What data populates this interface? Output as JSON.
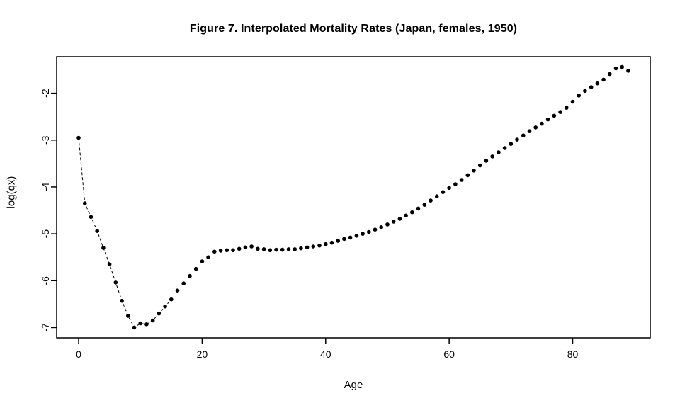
{
  "chart_data": {
    "type": "scatter",
    "title": "Figure 7. Interpolated Mortality Rates (Japan, females, 1950)",
    "xlabel": "Age",
    "ylabel": "log(qx)",
    "x": [
      0,
      1,
      2,
      3,
      4,
      5,
      6,
      7,
      8,
      9,
      10,
      11,
      12,
      13,
      14,
      15,
      16,
      17,
      18,
      19,
      20,
      21,
      22,
      23,
      24,
      25,
      26,
      27,
      28,
      29,
      30,
      31,
      32,
      33,
      34,
      35,
      36,
      37,
      38,
      39,
      40,
      41,
      42,
      43,
      44,
      45,
      46,
      47,
      48,
      49,
      50,
      51,
      52,
      53,
      54,
      55,
      56,
      57,
      58,
      59,
      60,
      61,
      62,
      63,
      64,
      65,
      66,
      67,
      68,
      69,
      70,
      71,
      72,
      73,
      74,
      75,
      76,
      77,
      78,
      79,
      80,
      81,
      82,
      83,
      84,
      85,
      86,
      87,
      88,
      89
    ],
    "y": [
      -2.95,
      -4.35,
      -4.64,
      -4.94,
      -5.3,
      -5.65,
      -6.04,
      -6.43,
      -6.75,
      -7.0,
      -6.91,
      -6.93,
      -6.85,
      -6.7,
      -6.55,
      -6.4,
      -6.21,
      -6.06,
      -5.9,
      -5.75,
      -5.59,
      -5.5,
      -5.38,
      -5.36,
      -5.35,
      -5.35,
      -5.32,
      -5.29,
      -5.27,
      -5.32,
      -5.33,
      -5.35,
      -5.34,
      -5.34,
      -5.33,
      -5.33,
      -5.31,
      -5.29,
      -5.27,
      -5.25,
      -5.22,
      -5.19,
      -5.15,
      -5.11,
      -5.08,
      -5.04,
      -5.0,
      -4.96,
      -4.91,
      -4.86,
      -4.8,
      -4.74,
      -4.68,
      -4.61,
      -4.54,
      -4.46,
      -4.38,
      -4.29,
      -4.2,
      -4.11,
      -4.02,
      -3.94,
      -3.85,
      -3.75,
      -3.65,
      -3.54,
      -3.44,
      -3.35,
      -3.26,
      -3.17,
      -3.08,
      -2.99,
      -2.9,
      -2.81,
      -2.73,
      -2.65,
      -2.56,
      -2.48,
      -2.4,
      -2.31,
      -2.18,
      -2.05,
      -1.95,
      -1.87,
      -1.79,
      -1.71,
      -1.59,
      -1.47,
      -1.44,
      -1.52
    ],
    "xticks": [
      0,
      20,
      40,
      60,
      80
    ],
    "yticks": [
      -7,
      -6,
      -5,
      -4,
      -3,
      -2
    ],
    "xlim": [
      -3.56,
      92.56
    ],
    "ylim": [
      -7.22,
      -1.22
    ],
    "legend": "none",
    "grid": false,
    "marker": "filled-circle",
    "marker_color": "#000000",
    "line_style": "dashed",
    "line_color": "#000000",
    "line_age_range": [
      0,
      15
    ],
    "background": "#ffffff"
  }
}
